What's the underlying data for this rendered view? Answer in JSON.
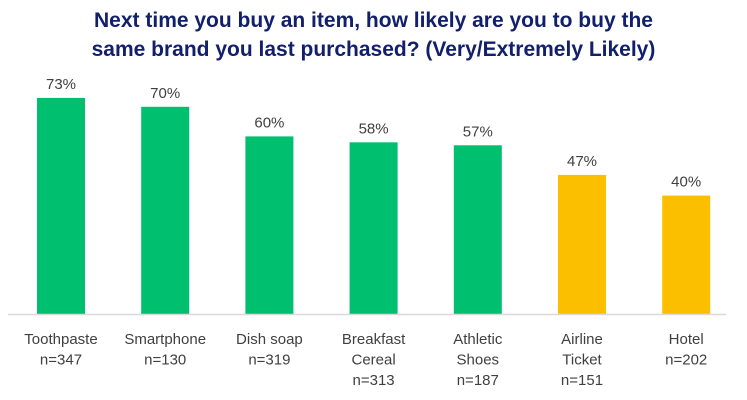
{
  "chart_data": {
    "type": "bar",
    "title": [
      "Next time you buy an item, how likely are you to buy the",
      "same brand you last purchased? (Very/Extremely Likely)"
    ],
    "categories": [
      [
        "Toothpaste",
        "n=347"
      ],
      [
        "Smartphone",
        "n=130"
      ],
      [
        "Dish soap",
        "n=319"
      ],
      [
        "Breakfast",
        "Cereal",
        "n=313"
      ],
      [
        "Athletic",
        "Shoes",
        "n=187"
      ],
      [
        "Airline",
        "Ticket",
        "n=151"
      ],
      [
        "Hotel",
        "n=202"
      ]
    ],
    "values": [
      73,
      70,
      60,
      58,
      57,
      47,
      40
    ],
    "data_labels": [
      "73%",
      "70%",
      "60%",
      "58%",
      "57%",
      "47%",
      "40%"
    ],
    "bar_colors": [
      "#00bf6f",
      "#00bf6f",
      "#00bf6f",
      "#00bf6f",
      "#00bf6f",
      "#fbbf00",
      "#fbbf00"
    ],
    "ylim": [
      0,
      100
    ],
    "grid": false,
    "xlabel": "",
    "ylabel": ""
  },
  "colors": {
    "title": "#12206b",
    "axis": "#d9d9d9",
    "text": "#404040"
  }
}
